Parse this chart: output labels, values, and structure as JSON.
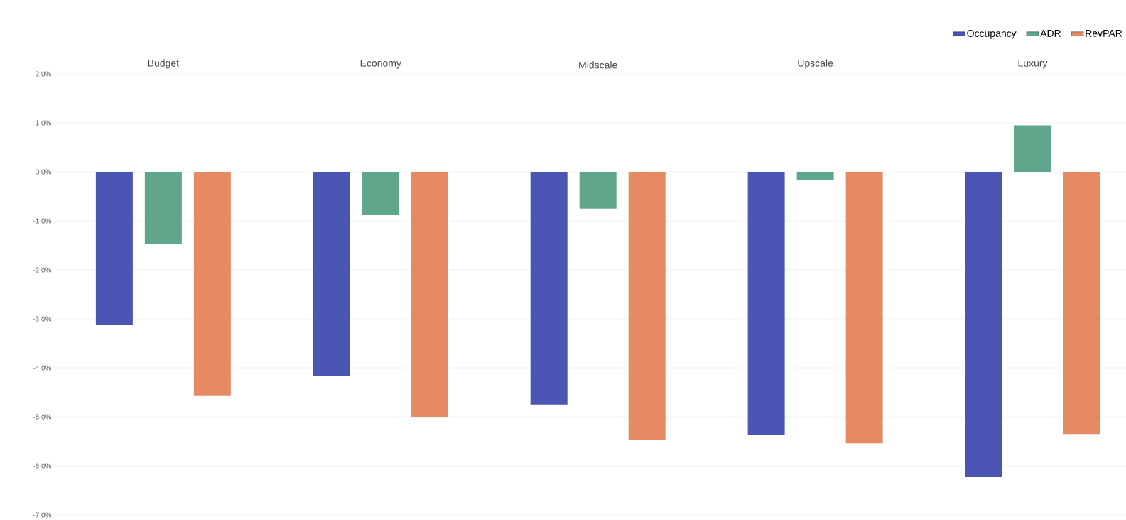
{
  "chart_data": {
    "type": "bar",
    "categories": [
      "Budget",
      "Economy",
      "Midscale",
      "Upscale",
      "Luxury"
    ],
    "series": [
      {
        "name": "Occupancy",
        "color": "#4a55b4",
        "values": [
          -3.12,
          -4.16,
          -4.75,
          -5.37,
          -6.23
        ]
      },
      {
        "name": "ADR",
        "color": "#5fa68a",
        "values": [
          -1.48,
          -0.87,
          -0.75,
          -0.16,
          0.95
        ]
      },
      {
        "name": "RevPAR",
        "color": "#e58a62",
        "values": [
          -4.56,
          -5.0,
          -5.47,
          -5.54,
          -5.35
        ]
      }
    ],
    "ylim": [
      -7,
      2
    ],
    "yticks": [
      {
        "value": -7,
        "label": "-7.0%"
      },
      {
        "value": -6,
        "label": "-6.0%"
      },
      {
        "value": -5,
        "label": "-5.0%"
      },
      {
        "value": -4,
        "label": "-4.0%"
      },
      {
        "value": -3,
        "label": "-3.0%"
      },
      {
        "value": -2,
        "label": "-2.0%"
      },
      {
        "value": -1,
        "label": "-1.0%"
      },
      {
        "value": 0,
        "label": "0.0%"
      },
      {
        "value": 1,
        "label": "1.0%"
      },
      {
        "value": 2,
        "label": "2.0%"
      }
    ],
    "grid": "y",
    "legend": "top right"
  }
}
